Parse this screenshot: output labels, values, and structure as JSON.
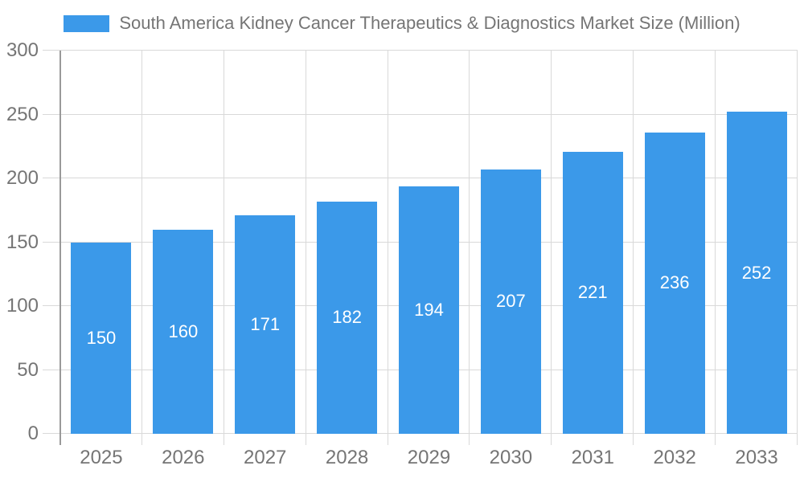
{
  "chart_data": {
    "type": "bar",
    "title": "South America Kidney Cancer Therapeutics & Diagnostics Market Size (Million)",
    "categories": [
      "2025",
      "2026",
      "2027",
      "2028",
      "2029",
      "2030",
      "2031",
      "2032",
      "2033"
    ],
    "values": [
      150,
      160,
      171,
      182,
      194,
      207,
      221,
      236,
      252
    ],
    "value_labels": [
      "150",
      "160",
      "171",
      "182",
      "194",
      "207",
      "221",
      "236",
      "252"
    ],
    "xlabel": "",
    "ylabel": "",
    "ylim": [
      0,
      300
    ],
    "yticks": [
      0,
      50,
      100,
      150,
      200,
      250,
      300
    ],
    "grid": "on",
    "legend_position": "top-center",
    "legend_items": [
      {
        "label": "South America Kidney Cancer Therapeutics & Diagnostics Market Size (Million)",
        "swatch_color": "#3b99e9"
      }
    ]
  },
  "colors": {
    "bar": "#3b99e9",
    "bar_value_text": "#ffffff",
    "axis_text": "#757575",
    "title_text": "#757575",
    "gridline": "#d9d9d9",
    "y_axis_line": "#999999",
    "background": "#ffffff"
  }
}
